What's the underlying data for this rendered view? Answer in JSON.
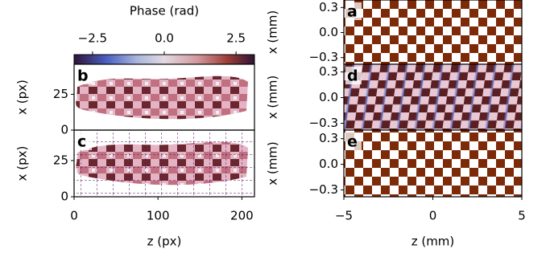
{
  "chart_data": [
    {
      "type": "colorbar",
      "title": "Phase (rad)",
      "xlim": [
        -3.14159,
        3.14159
      ],
      "xticks": [
        {
          "value": -2.5,
          "label": "−2.5"
        },
        {
          "value": 0,
          "label": "0.0"
        },
        2.5
      ]
    },
    {
      "type": "image",
      "label": "b",
      "ylabel": "x (px)",
      "ylim": [
        0,
        46
      ],
      "yticks": [
        0,
        25
      ]
    },
    {
      "type": "image",
      "label": "c",
      "ylabel": "x (px)",
      "xlabel": "z (px)",
      "ylim": [
        0,
        46
      ],
      "yticks": [
        0,
        25
      ],
      "xlim": [
        0,
        215
      ],
      "xticks": [
        0,
        100,
        200
      ]
    },
    {
      "type": "image",
      "label": "a",
      "ylabel": "x (mm)",
      "ylim": [
        -0.38,
        0.39
      ],
      "yticks": [
        {
          "value": -0.3,
          "label": "−0.3"
        },
        {
          "value": 0,
          "label": "0.0"
        },
        0.3
      ]
    },
    {
      "type": "image",
      "label": "d",
      "ylabel": "x (mm)",
      "ylim": [
        -0.38,
        0.39
      ],
      "yticks": [
        {
          "value": -0.3,
          "label": "−0.3"
        },
        {
          "value": 0,
          "label": "0.0"
        },
        0.3
      ]
    },
    {
      "type": "image",
      "label": "e",
      "ylabel": "x (mm)",
      "xlabel": "z (mm)",
      "ylim": [
        -0.38,
        0.4
      ],
      "yticks": [
        {
          "value": -0.3,
          "label": "−0.3"
        },
        {
          "value": 0,
          "label": "0.0"
        },
        0.3
      ],
      "xlim": [
        -5,
        5
      ],
      "xticks": [
        {
          "value": -5,
          "label": "−5"
        },
        0,
        5
      ]
    }
  ]
}
